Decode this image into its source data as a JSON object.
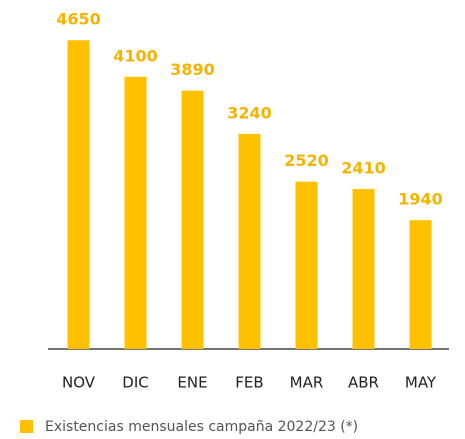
{
  "chart_data": {
    "type": "bar",
    "categories": [
      "NOV",
      "DIC",
      "ENE",
      "FEB",
      "MAR",
      "ABR",
      "MAY"
    ],
    "series": [
      {
        "name": "Existencias mensuales campaña 2022/23 (*)",
        "color": "#ffc000",
        "values": [
          4650,
          4100,
          3890,
          3240,
          2520,
          2410,
          1940
        ]
      }
    ],
    "ylim": [
      0,
      5000
    ],
    "legend": "bottom-left"
  }
}
